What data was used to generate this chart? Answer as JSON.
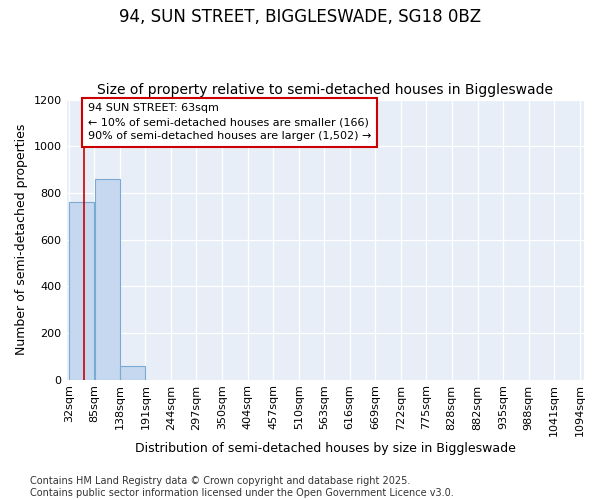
{
  "title": "94, SUN STREET, BIGGLESWADE, SG18 0BZ",
  "subtitle": "Size of property relative to semi-detached houses in Biggleswade",
  "xlabel": "Distribution of semi-detached houses by size in Biggleswade",
  "ylabel": "Number of semi-detached properties",
  "footer_line1": "Contains HM Land Registry data © Crown copyright and database right 2025.",
  "footer_line2": "Contains public sector information licensed under the Open Government Licence v3.0.",
  "bin_edges": [
    32,
    85,
    138,
    191,
    244,
    297,
    350,
    404,
    457,
    510,
    563,
    616,
    669,
    722,
    775,
    828,
    882,
    935,
    988,
    1041,
    1094
  ],
  "bar_heights": [
    760,
    860,
    60,
    0,
    0,
    0,
    0,
    0,
    0,
    0,
    0,
    0,
    0,
    0,
    0,
    0,
    0,
    0,
    0,
    0
  ],
  "bar_color": "#c5d8f0",
  "bar_edge_color": "#7aaad0",
  "property_size": 63,
  "red_line_color": "#cc0000",
  "annotation_line1": "94 SUN STREET: 63sqm",
  "annotation_line2": "← 10% of semi-detached houses are smaller (166)",
  "annotation_line3": "90% of semi-detached houses are larger (1,502) →",
  "ylim": [
    0,
    1200
  ],
  "yticks": [
    0,
    200,
    400,
    600,
    800,
    1000,
    1200
  ],
  "background_color": "#ffffff",
  "plot_bg_color": "#e8eef8",
  "grid_color": "#ffffff",
  "title_fontsize": 12,
  "subtitle_fontsize": 10,
  "axis_label_fontsize": 9,
  "tick_fontsize": 8,
  "footer_fontsize": 7
}
